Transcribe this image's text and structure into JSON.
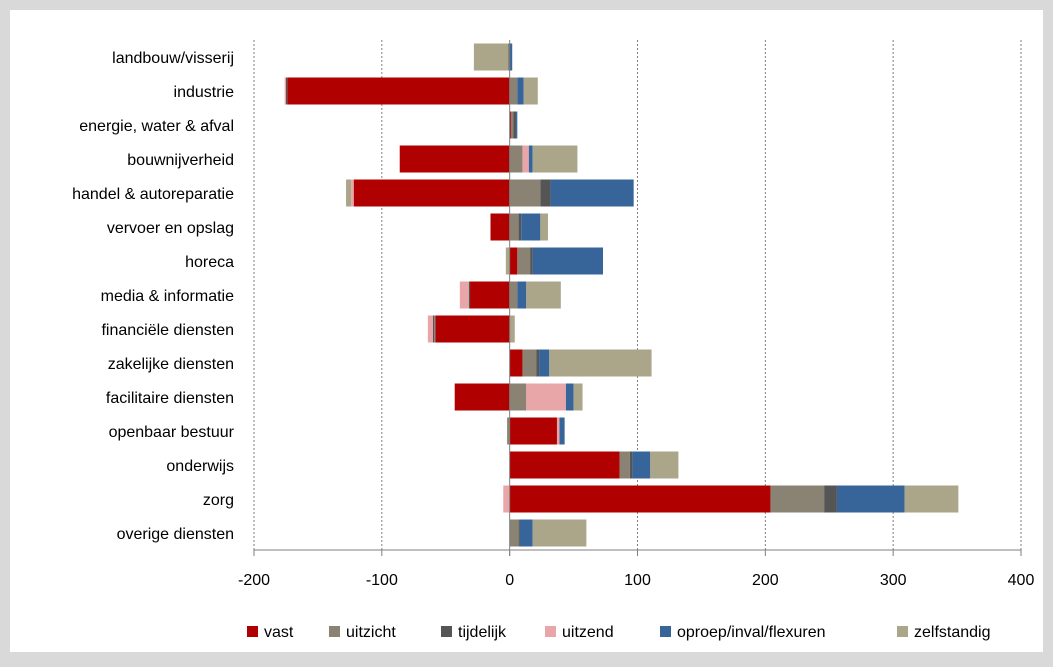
{
  "chart_data": {
    "type": "bar",
    "orientation": "horizontal",
    "stacked": "diverging",
    "title": "",
    "xlabel": "",
    "ylabel": "",
    "xlim": [
      -200,
      400
    ],
    "xticks": [
      -200,
      -100,
      0,
      100,
      200,
      300,
      400
    ],
    "xtick_labels": [
      "-200",
      "-100",
      "0",
      "100",
      "200",
      "300",
      "400"
    ],
    "grid": "vertical dotted gridlines",
    "legend_position": "bottom",
    "categories": [
      "landbouw/visserij",
      "industrie",
      "energie, water & afval",
      "bouwnijverheid",
      "handel & autoreparatie",
      "vervoer en opslag",
      "horeca",
      "media & informatie",
      "financiële diensten",
      "zakelijke diensten",
      "facilitaire diensten",
      "openbaar bestuur",
      "onderwijs",
      "zorg",
      "overige diensten"
    ],
    "series": [
      {
        "name": "vast",
        "color": "#b00000",
        "values": [
          0,
          -174,
          1,
          -86,
          -122,
          -15,
          6,
          -31,
          -58,
          10,
          -43,
          37,
          86,
          204,
          0
        ]
      },
      {
        "name": "uitzicht",
        "color": "#8a8374",
        "values": [
          0,
          6,
          2,
          10,
          24,
          7,
          10,
          6,
          -1,
          11,
          13,
          -2,
          8,
          42,
          7
        ]
      },
      {
        "name": "tijdelijk",
        "color": "#555555",
        "values": [
          -1,
          -1,
          2,
          0,
          8,
          2,
          2,
          -1,
          -1,
          2,
          0,
          0,
          2,
          10,
          1
        ]
      },
      {
        "name": "uitzend",
        "color": "#e8a6a8",
        "values": [
          0,
          -1,
          0,
          5,
          -2,
          0,
          0,
          -7,
          -4,
          0,
          31,
          2,
          0,
          -5,
          0
        ]
      },
      {
        "name": "oproep/inval/flexuren",
        "color": "#37659a",
        "values": [
          2,
          5,
          1,
          3,
          65,
          15,
          55,
          7,
          0,
          8,
          6,
          4,
          14,
          53,
          10
        ]
      },
      {
        "name": "zelfstandig",
        "color": "#aba58a",
        "values": [
          -27,
          11,
          0,
          35,
          -4,
          6,
          -3,
          27,
          4,
          80,
          7,
          0,
          22,
          42,
          42
        ]
      }
    ]
  }
}
